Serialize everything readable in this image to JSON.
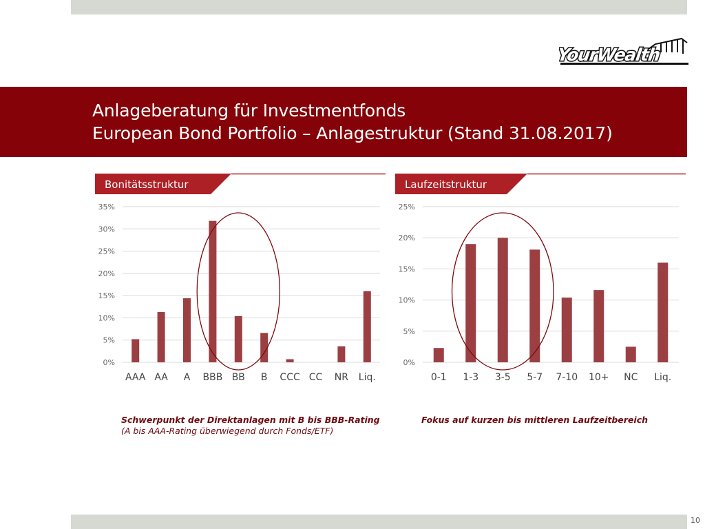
{
  "slide": {
    "title_line1": "Anlageberatung für Investmentfonds",
    "title_line2": "European Bond Portfolio – Anlagestruktur (Stand 31.08.2017)",
    "logo_text": "YourWealth",
    "page_number": "10",
    "colors": {
      "band": "#850208",
      "bar": "#9b3f43",
      "ellipse": "#7d0a10",
      "gray_bar": "#d6d8d2"
    }
  },
  "captions": {
    "left_line1": "Schwerpunkt der Direktanlagen mit B bis BBB-Rating",
    "left_line2": "(A bis AAA-Rating überwiegend durch Fonds/ETF)",
    "right_line1": "Fokus auf kurzen bis mittleren Laufzeitbereich"
  },
  "chart_data": [
    {
      "type": "bar",
      "title": "Bonitätsstruktur",
      "categories": [
        "AAA",
        "AA",
        "A",
        "BBB",
        "BB",
        "B",
        "CCC",
        "CC",
        "NR",
        "Liq."
      ],
      "values": [
        5.2,
        11.3,
        14.4,
        31.8,
        10.4,
        6.6,
        0.7,
        0,
        3.6,
        16.0
      ],
      "ylim": [
        0,
        35
      ],
      "yticks": [
        0,
        5,
        10,
        15,
        20,
        25,
        30,
        35
      ],
      "ytick_labels": [
        "0%",
        "5%",
        "10%",
        "15%",
        "20%",
        "25%",
        "30%",
        "35%"
      ],
      "highlight_categories": [
        "BBB",
        "BB",
        "B"
      ],
      "xlabel": "",
      "ylabel": "",
      "grid": true
    },
    {
      "type": "bar",
      "title": "Laufzeitstruktur",
      "categories": [
        "0-1",
        "1-3",
        "3-5",
        "5-7",
        "7-10",
        "10+",
        "NC",
        "Liq."
      ],
      "values": [
        2.3,
        19.0,
        20.0,
        18.1,
        10.4,
        11.6,
        2.5,
        16.0
      ],
      "ylim": [
        0,
        25
      ],
      "yticks": [
        0,
        5,
        10,
        15,
        20,
        25
      ],
      "ytick_labels": [
        "0%",
        "5%",
        "10%",
        "15%",
        "20%",
        "25%"
      ],
      "highlight_categories": [
        "1-3",
        "3-5",
        "5-7"
      ],
      "xlabel": "",
      "ylabel": "",
      "grid": true
    }
  ]
}
